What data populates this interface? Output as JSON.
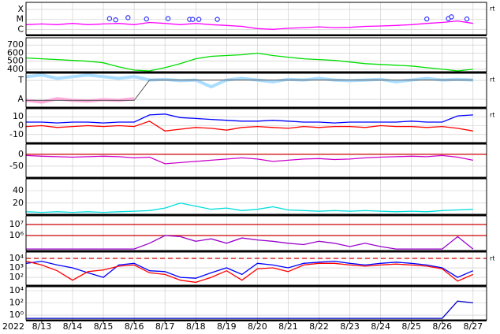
{
  "chart_data": [
    {
      "type": "line",
      "log": true,
      "ylim": [
        3e-07,
        0.0005
      ],
      "grid": true,
      "note": "rt",
      "yticks": [
        {
          "value": 1e-06,
          "label": "C"
        },
        {
          "value": 1e-05,
          "label": "M"
        },
        {
          "value": 0.0001,
          "label": "X"
        }
      ],
      "xlim": [
        12.49,
        27.44
      ],
      "x": [
        12.5,
        13,
        13.5,
        14,
        14.5,
        15,
        15.5,
        16,
        16.5,
        17,
        17.5,
        18,
        18.5,
        19,
        19.5,
        20,
        20.5,
        21,
        21.5,
        22,
        22.5,
        23,
        23.5,
        24,
        24.5,
        25,
        25.5,
        26,
        26.5,
        27
      ],
      "series": [
        {
          "color": "#ff00ff",
          "values": [
            3e-06,
            3.5e-06,
            3e-06,
            4e-06,
            3e-06,
            3.5e-06,
            4e-06,
            3e-06,
            5e-06,
            4e-06,
            3e-06,
            4e-06,
            3e-06,
            2.5e-06,
            2e-06,
            1.2e-06,
            1e-06,
            1.3e-06,
            1.5e-06,
            1.8e-06,
            1.5e-06,
            1.6e-06,
            2e-06,
            2.2e-06,
            2.5e-06,
            3e-06,
            4e-06,
            5e-06,
            7e-06,
            4e-06
          ]
        },
        {
          "color": "#3333ff",
          "marker": "circle",
          "x": [
            15.2,
            15.4,
            15.8,
            16.4,
            17.1,
            17.8,
            17.9,
            18.1,
            18.7,
            25.5,
            26.2,
            26.3,
            26.8
          ],
          "values": [
            1.2e-05,
            9e-06,
            1.5e-05,
            1.1e-05,
            1.2e-05,
            1e-05,
            1e-05,
            1e-05,
            1e-05,
            1.1e-05,
            1.2e-05,
            1.8e-05,
            1.1e-05
          ]
        }
      ]
    },
    {
      "type": "line",
      "log": false,
      "ylim": [
        370,
        790
      ],
      "grid": true,
      "yticks": [
        400,
        500,
        600,
        700
      ],
      "xlim": [
        12.49,
        27.44
      ],
      "x": [
        12.5,
        13,
        13.5,
        14,
        14.5,
        15,
        15.5,
        16,
        16.5,
        17,
        17.5,
        18,
        18.5,
        19,
        19.5,
        20,
        20.5,
        21,
        21.5,
        22,
        22.5,
        23,
        23.5,
        24,
        24.5,
        25,
        25.5,
        26,
        26.5,
        27
      ],
      "series": [
        {
          "color": "#00dd00",
          "values": [
            540,
            530,
            520,
            510,
            500,
            480,
            430,
            390,
            380,
            420,
            470,
            530,
            560,
            570,
            580,
            600,
            570,
            550,
            530,
            520,
            510,
            490,
            470,
            460,
            450,
            440,
            420,
            400,
            380,
            400
          ]
        }
      ]
    },
    {
      "type": "line",
      "log": false,
      "ylim": [
        0,
        1
      ],
      "grid": true,
      "note": "rt",
      "yticks": [
        {
          "value": 0.79,
          "label": "T"
        },
        {
          "value": 0.23,
          "label": "A"
        }
      ],
      "xlim": [
        12.49,
        27.44
      ],
      "x": [
        12.5,
        13,
        13.5,
        14,
        14.5,
        15,
        15.5,
        16,
        16.5,
        17,
        17.5,
        18,
        18.5,
        19,
        19.5,
        20,
        20.5,
        21,
        21.5,
        22,
        22.5,
        23,
        23.5,
        24,
        24.5,
        25,
        25.5,
        26,
        26.5,
        27
      ],
      "series": [
        {
          "color": "#aaddff",
          "width": 4,
          "values": [
            0.9,
            0.95,
            0.85,
            0.9,
            0.95,
            0.9,
            0.85,
            0.9,
            0.8,
            0.82,
            0.78,
            0.8,
            0.6,
            0.8,
            0.85,
            0.8,
            0.75,
            0.82,
            0.8,
            0.85,
            0.8,
            0.78,
            0.8,
            0.82,
            0.75,
            0.8,
            0.85,
            0.8,
            0.82,
            0.8
          ]
        },
        {
          "color": "#ffaadd",
          "width": 4,
          "values": [
            0.2,
            0.15,
            0.25,
            0.2,
            0.18,
            0.22,
            0.2,
            0.25,
            null,
            null,
            null,
            null,
            null,
            null,
            null,
            null,
            null,
            null,
            null,
            null,
            null,
            null,
            null,
            null,
            null,
            null,
            null,
            null,
            null,
            null
          ]
        },
        {
          "color": "#555555",
          "width": 1,
          "values": [
            0.2,
            0.2,
            0.2,
            0.2,
            0.2,
            0.2,
            0.2,
            0.2,
            0.8,
            0.8,
            0.8,
            0.8,
            0.8,
            0.8,
            0.8,
            0.8,
            0.8,
            0.8,
            0.8,
            0.8,
            0.8,
            0.8,
            0.8,
            0.8,
            0.8,
            0.8,
            0.8,
            0.8,
            0.8,
            0.8
          ]
        }
      ]
    },
    {
      "type": "line",
      "log": false,
      "ylim": [
        -19,
        19
      ],
      "grid": true,
      "note": "rt",
      "yticks": [
        -10,
        0,
        10
      ],
      "xlim": [
        12.49,
        27.44
      ],
      "x": [
        12.5,
        13,
        13.5,
        14,
        14.5,
        15,
        15.5,
        16,
        16.5,
        17,
        17.5,
        18,
        18.5,
        19,
        19.5,
        20,
        20.5,
        21,
        21.5,
        22,
        22.5,
        23,
        23.5,
        24,
        24.5,
        25,
        25.5,
        26,
        26.5,
        27
      ],
      "series": [
        {
          "color": "#0000ff",
          "values": [
            4,
            4,
            3,
            4,
            4,
            3,
            4,
            4,
            12,
            13,
            9,
            8,
            7,
            6,
            5,
            5,
            6,
            5,
            4,
            4,
            3,
            4,
            4,
            4,
            4,
            5,
            4,
            4,
            11,
            12
          ]
        },
        {
          "color": "#ff0000",
          "values": [
            -1,
            0,
            -2,
            -1,
            0,
            -1,
            0,
            -1,
            5,
            -6,
            -4,
            -2,
            -3,
            -5,
            -2,
            -1,
            -2,
            -3,
            -1,
            -2,
            -1,
            -1,
            -2,
            0,
            -1,
            -1,
            -2,
            -1,
            -3,
            -6
          ]
        }
      ]
    },
    {
      "type": "line",
      "log": false,
      "ylim": [
        -97,
        43
      ],
      "grid": true,
      "yticks": [
        -50,
        0
      ],
      "xlim": [
        12.49,
        27.44
      ],
      "hlines": [
        {
          "value": 0,
          "color": "#cc0000"
        }
      ],
      "x": [
        12.5,
        13,
        13.5,
        14,
        14.5,
        15,
        15.5,
        16,
        16.5,
        17,
        17.5,
        18,
        18.5,
        19,
        19.5,
        20,
        20.5,
        21,
        21.5,
        22,
        22.5,
        23,
        23.5,
        24,
        24.5,
        25,
        25.5,
        26,
        26.5,
        27
      ],
      "series": [
        {
          "color": "#cc00cc",
          "values": [
            -5,
            -8,
            -10,
            -12,
            -10,
            -8,
            -10,
            -15,
            -12,
            -40,
            -35,
            -30,
            -25,
            -20,
            -15,
            -20,
            -30,
            -25,
            -20,
            -18,
            -22,
            -20,
            -15,
            -12,
            -10,
            -8,
            -10,
            -5,
            -12,
            -25
          ]
        }
      ]
    },
    {
      "type": "line",
      "log": false,
      "ylim": [
        2,
        59
      ],
      "grid": true,
      "yticks": [
        20,
        40
      ],
      "xlim": [
        12.49,
        27.44
      ],
      "x": [
        12.5,
        13,
        13.5,
        14,
        14.5,
        15,
        15.5,
        16,
        16.5,
        17,
        17.5,
        18,
        18.5,
        19,
        19.5,
        20,
        20.5,
        21,
        21.5,
        22,
        22.5,
        23,
        23.5,
        24,
        24.5,
        25,
        25.5,
        26,
        26.5,
        27
      ],
      "series": [
        {
          "color": "#00dddd",
          "values": [
            6,
            5,
            6,
            5,
            6,
            5,
            6,
            7,
            8,
            12,
            20,
            15,
            10,
            12,
            8,
            10,
            14,
            9,
            8,
            7,
            8,
            7,
            8,
            7,
            6,
            7,
            6,
            8,
            9,
            10
          ]
        }
      ]
    },
    {
      "type": "line",
      "log": true,
      "ylim": [
        44000,
        61000000
      ],
      "grid": true,
      "xlim": [
        12.49,
        27.44
      ],
      "yticks": [
        {
          "value": 1000000,
          "label": "10⁶"
        },
        {
          "value": 10000000,
          "label": "10⁷"
        }
      ],
      "hlines": [
        {
          "value": 10000000,
          "color": "#cc0000"
        },
        {
          "value": 1000000,
          "color": "#cc0000"
        }
      ],
      "x": [
        12.5,
        13,
        13.5,
        14,
        14.5,
        15,
        15.5,
        16,
        16.5,
        17,
        17.5,
        18,
        18.5,
        19,
        19.5,
        20,
        20.5,
        21,
        21.5,
        22,
        22.5,
        23,
        23.5,
        24,
        24.5,
        25,
        25.5,
        26,
        26.5,
        27
      ],
      "series": [
        {
          "color": "#9900cc",
          "values": [
            60000,
            60000,
            60000,
            60000,
            60000,
            60000,
            60000,
            60000,
            200000,
            1000000,
            800000,
            300000,
            500000,
            200000,
            600000,
            400000,
            300000,
            200000,
            150000,
            300000,
            200000,
            100000,
            200000,
            100000,
            60000,
            60000,
            60000,
            60000,
            800000,
            60000
          ]
        }
      ]
    },
    {
      "type": "line",
      "log": true,
      "ylim": [
        15,
        46000
      ],
      "grid": true,
      "note": "rt",
      "xlim": [
        12.49,
        27.44
      ],
      "yticks": [
        {
          "value": 100,
          "label": "10²"
        },
        {
          "value": 1000,
          "label": "10³"
        },
        {
          "value": 10000,
          "label": "10⁴"
        }
      ],
      "hlines": [
        {
          "value": 10000,
          "color": "#cc0000",
          "dash": true
        }
      ],
      "x": [
        12.5,
        13,
        13.5,
        14,
        14.5,
        15,
        15.5,
        16,
        16.5,
        17,
        17.5,
        18,
        18.5,
        19,
        19.5,
        20,
        20.5,
        21,
        21.5,
        22,
        22.5,
        23,
        23.5,
        24,
        24.5,
        25,
        25.5,
        26,
        26.5,
        27
      ],
      "series": [
        {
          "color": "#0000ff",
          "values": [
            3000,
            5000,
            2000,
            1000,
            300,
            100,
            2000,
            3000,
            500,
            400,
            100,
            80,
            300,
            1000,
            200,
            3000,
            2000,
            1000,
            3000,
            4000,
            5000,
            3000,
            2000,
            3000,
            4000,
            3000,
            2000,
            1000,
            100,
            500
          ]
        },
        {
          "color": "#ff0000",
          "values": [
            5000,
            2000,
            500,
            50,
            400,
            600,
            1500,
            2000,
            300,
            200,
            50,
            30,
            100,
            500,
            50,
            800,
            1000,
            400,
            2000,
            3000,
            3000,
            2000,
            1500,
            2000,
            2500,
            2000,
            1500,
            800,
            40,
            200
          ]
        }
      ]
    },
    {
      "type": "line",
      "log": true,
      "ylim": [
        0.17,
        44000
      ],
      "grid": true,
      "xlim": [
        12.49,
        27.44
      ],
      "yticks": [
        {
          "value": 1,
          "label": "10⁰"
        },
        {
          "value": 100,
          "label": "10²"
        },
        {
          "value": 10000,
          "label": "10⁴"
        }
      ],
      "year": "2022",
      "xticks": [
        {
          "value": 13,
          "label": "8/13"
        },
        {
          "value": 14,
          "label": "8/14"
        },
        {
          "value": 15,
          "label": "8/15"
        },
        {
          "value": 16,
          "label": "8/16"
        },
        {
          "value": 17,
          "label": "8/17"
        },
        {
          "value": 18,
          "label": "8/18"
        },
        {
          "value": 19,
          "label": "8/19"
        },
        {
          "value": 20,
          "label": "8/20"
        },
        {
          "value": 21,
          "label": "8/21"
        },
        {
          "value": 22,
          "label": "8/22"
        },
        {
          "value": 23,
          "label": "8/23"
        },
        {
          "value": 24,
          "label": "8/24"
        },
        {
          "value": 25,
          "label": "8/25"
        },
        {
          "value": 26,
          "label": "8/26"
        },
        {
          "value": 27,
          "label": "8/27"
        }
      ],
      "x": [
        12.5,
        13,
        13.5,
        14,
        14.5,
        15,
        15.5,
        16,
        16.5,
        17,
        17.5,
        18,
        18.5,
        19,
        19.5,
        20,
        20.5,
        21,
        21.5,
        22,
        22.5,
        23,
        23.5,
        24,
        24.5,
        25,
        25.5,
        26,
        26.5,
        27
      ],
      "series": [
        {
          "color": "#0000cc",
          "values": [
            0.3,
            0.3,
            0.3,
            0.3,
            0.3,
            0.3,
            0.3,
            0.3,
            0.3,
            0.3,
            0.3,
            0.3,
            0.3,
            0.3,
            0.3,
            0.3,
            0.3,
            0.3,
            0.3,
            0.3,
            0.3,
            0.3,
            0.3,
            0.3,
            0.3,
            0.3,
            0.3,
            0.3,
            200,
            100
          ]
        }
      ]
    }
  ]
}
